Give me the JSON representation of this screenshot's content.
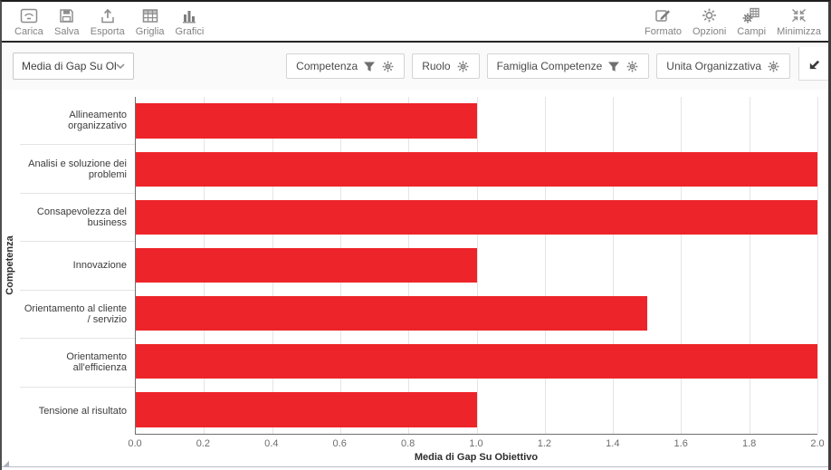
{
  "toolbar": {
    "left": [
      {
        "label": "Carica",
        "icon": "open-icon"
      },
      {
        "label": "Salva",
        "icon": "save-icon"
      },
      {
        "label": "Esporta",
        "icon": "export-icon"
      },
      {
        "label": "Griglia",
        "icon": "grid-icon"
      },
      {
        "label": "Grafici",
        "icon": "charts-icon"
      }
    ],
    "right": [
      {
        "label": "Formato",
        "icon": "edit-icon"
      },
      {
        "label": "Opzioni",
        "icon": "gear-icon"
      },
      {
        "label": "Campi",
        "icon": "fields-icon"
      },
      {
        "label": "Minimizza",
        "icon": "minimize-icon"
      }
    ]
  },
  "filter_bar": {
    "measure_dropdown": {
      "value": "Media di Gap Su Obie...",
      "icon": "chevron-down-icon"
    },
    "filters": [
      {
        "label": "Competenza",
        "has_funnel": true,
        "has_gear": true
      },
      {
        "label": "Ruolo",
        "has_funnel": false,
        "has_gear": true
      },
      {
        "label": "Famiglia Competenze",
        "has_funnel": true,
        "has_gear": true
      },
      {
        "label": "Unita Organizzativa",
        "has_funnel": false,
        "has_gear": true
      }
    ],
    "restore_button": {
      "icon": "arrow-down-left-icon"
    }
  },
  "chart_data": {
    "type": "bar",
    "orientation": "horizontal",
    "title": "",
    "categories": [
      "Allineamento organizzativo",
      "Analisi e soluzione dei problemi",
      "Consapevolezza del business",
      "Innovazione",
      "Orientamento al cliente / servizio",
      "Orientamento all'efficienza",
      "Tensione al risultato"
    ],
    "values": [
      1.0,
      2.0,
      2.0,
      1.0,
      1.5,
      2.0,
      1.0
    ],
    "xlabel": "Media di Gap Su Obiettivo",
    "ylabel": "Competenza",
    "xlim": [
      0.0,
      2.0
    ],
    "xticks": [
      "0.0",
      "0.2",
      "0.4",
      "0.6",
      "0.8",
      "1.0",
      "1.2",
      "1.4",
      "1.6",
      "1.8",
      "2.0"
    ],
    "bar_color": "#ed2429",
    "grid": "vertical",
    "legend": "none"
  }
}
